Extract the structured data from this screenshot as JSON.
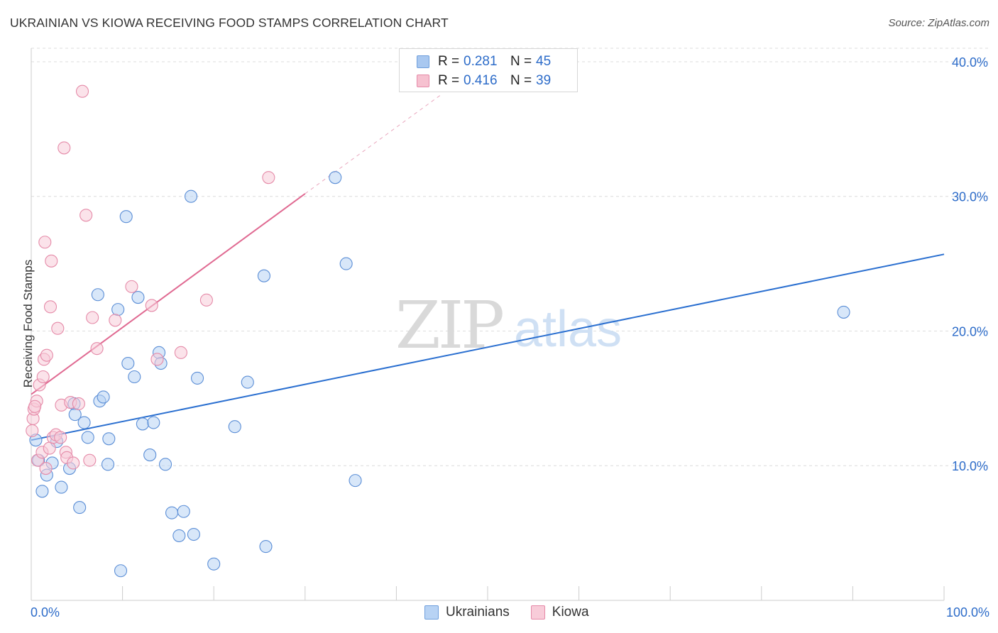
{
  "title": "UKRAINIAN VS KIOWA RECEIVING FOOD STAMPS CORRELATION CHART",
  "source": "Source: ZipAtlas.com",
  "watermark": {
    "zip": "ZIP",
    "atlas": "atlas"
  },
  "legend": {
    "r_label": "R =",
    "n_label": "N =",
    "rows": [
      {
        "r": "0.281",
        "n": "45",
        "color": "#a9c8f0",
        "border": "#6f9fdc"
      },
      {
        "r": "0.416",
        "n": "39",
        "color": "#f6c1d0",
        "border": "#e58aa8"
      }
    ]
  },
  "bottom_legend": [
    {
      "label": "Ukrainians",
      "color": "#b8d3f4",
      "border": "#6f9fdc"
    },
    {
      "label": "Kiowa",
      "color": "#f8ccd9",
      "border": "#e58aa8"
    }
  ],
  "chart_data": {
    "type": "scatter",
    "title": "UKRAINIAN VS KIOWA RECEIVING FOOD STAMPS CORRELATION CHART",
    "xlabel": "",
    "ylabel": "Receiving Food Stamps",
    "xlim": [
      0,
      100
    ],
    "ylim": [
      0,
      41
    ],
    "x_tick_labels": [
      "0.0%",
      "100.0%"
    ],
    "y_ticks": [
      10,
      20,
      30,
      40
    ],
    "y_tick_labels": [
      "10.0%",
      "20.0%",
      "30.0%",
      "40.0%"
    ],
    "grid": true,
    "legend_position": "top-center",
    "series": [
      {
        "name": "Ukrainians",
        "color": "#5b8ed6",
        "fill": "#b8d3f4",
        "trend": {
          "x": [
            0,
            100
          ],
          "y": [
            11.9,
            25.7
          ],
          "color": "#2a6fd0"
        },
        "points": [
          [
            0.5,
            11.9
          ],
          [
            0.8,
            10.4
          ],
          [
            1.2,
            8.1
          ],
          [
            1.7,
            9.3
          ],
          [
            2.3,
            10.2
          ],
          [
            2.8,
            11.8
          ],
          [
            3.3,
            8.4
          ],
          [
            4.2,
            9.8
          ],
          [
            4.7,
            14.6
          ],
          [
            4.8,
            13.8
          ],
          [
            5.3,
            6.9
          ],
          [
            5.8,
            13.2
          ],
          [
            6.2,
            12.1
          ],
          [
            7.3,
            22.7
          ],
          [
            7.5,
            14.8
          ],
          [
            7.9,
            15.1
          ],
          [
            8.4,
            10.1
          ],
          [
            8.5,
            12.0
          ],
          [
            9.5,
            21.6
          ],
          [
            9.8,
            2.2
          ],
          [
            10.4,
            28.5
          ],
          [
            10.6,
            17.6
          ],
          [
            11.3,
            16.6
          ],
          [
            11.7,
            22.5
          ],
          [
            12.2,
            13.1
          ],
          [
            13.0,
            10.8
          ],
          [
            13.4,
            13.2
          ],
          [
            14.0,
            18.4
          ],
          [
            14.2,
            17.6
          ],
          [
            14.7,
            10.1
          ],
          [
            15.4,
            6.5
          ],
          [
            16.2,
            4.8
          ],
          [
            16.7,
            6.6
          ],
          [
            17.5,
            30.0
          ],
          [
            17.8,
            4.9
          ],
          [
            18.2,
            16.5
          ],
          [
            20.0,
            2.7
          ],
          [
            22.3,
            12.9
          ],
          [
            23.7,
            16.2
          ],
          [
            25.5,
            24.1
          ],
          [
            25.7,
            4.0
          ],
          [
            33.3,
            31.4
          ],
          [
            34.5,
            25.0
          ],
          [
            35.5,
            8.9
          ],
          [
            89.0,
            21.4
          ]
        ]
      },
      {
        "name": "Kiowa",
        "color": "#e58aa8",
        "fill": "#f8ccd9",
        "trend": {
          "x": [
            0,
            30
          ],
          "y": [
            15.3,
            30.2
          ],
          "color": "#e06a92",
          "dashed_extension": {
            "x": [
              30,
              45
            ],
            "y": [
              30.2,
              37.6
            ]
          }
        },
        "points": [
          [
            0.1,
            12.6
          ],
          [
            0.2,
            13.5
          ],
          [
            0.3,
            14.2
          ],
          [
            0.6,
            14.8
          ],
          [
            0.7,
            10.4
          ],
          [
            0.9,
            16.0
          ],
          [
            1.2,
            11.0
          ],
          [
            1.3,
            16.6
          ],
          [
            1.4,
            17.9
          ],
          [
            1.5,
            26.6
          ],
          [
            1.6,
            9.8
          ],
          [
            1.7,
            18.2
          ],
          [
            2.0,
            11.3
          ],
          [
            2.1,
            21.8
          ],
          [
            2.2,
            25.2
          ],
          [
            2.4,
            12.1
          ],
          [
            2.7,
            12.3
          ],
          [
            2.9,
            20.2
          ],
          [
            3.2,
            12.1
          ],
          [
            3.3,
            14.5
          ],
          [
            3.6,
            33.6
          ],
          [
            3.8,
            11.0
          ],
          [
            3.9,
            10.6
          ],
          [
            4.3,
            14.7
          ],
          [
            4.6,
            10.2
          ],
          [
            5.2,
            14.6
          ],
          [
            5.6,
            37.8
          ],
          [
            6.0,
            28.6
          ],
          [
            6.4,
            10.4
          ],
          [
            6.7,
            21.0
          ],
          [
            7.2,
            18.7
          ],
          [
            9.2,
            20.8
          ],
          [
            11.0,
            23.3
          ],
          [
            13.2,
            21.9
          ],
          [
            13.8,
            17.9
          ],
          [
            16.4,
            18.4
          ],
          [
            19.2,
            22.3
          ],
          [
            26.0,
            31.4
          ],
          [
            0.4,
            14.4
          ]
        ]
      }
    ]
  }
}
